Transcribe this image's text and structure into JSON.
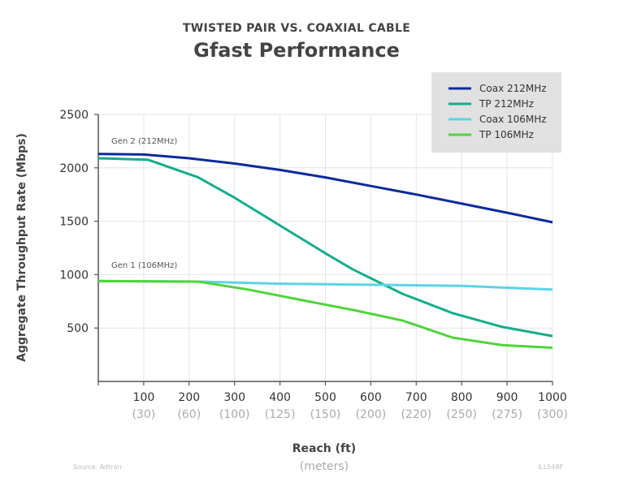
{
  "chart_data": {
    "type": "line",
    "supertitle": "TWISTED PAIR VS. COAXIAL CABLE",
    "title": "Gfast Performance",
    "xlabel": "Reach (ft)",
    "xlabel_secondary": "(meters)",
    "ylabel": "Aggregate Throughput Rate (Mbps)",
    "xlim": [
      0,
      1000
    ],
    "ylim": [
      0,
      2500
    ],
    "xticks": [
      100,
      200,
      300,
      400,
      500,
      600,
      700,
      800,
      900,
      1000
    ],
    "xtick_labels": [
      "100",
      "200",
      "300",
      "400",
      "500",
      "600",
      "700",
      "800",
      "900",
      "1000"
    ],
    "xtick_labels_meters": [
      "(30)",
      "(60)",
      "(100)",
      "(125)",
      "(150)",
      "(200)",
      "(220)",
      "(250)",
      "(275)",
      "(300)"
    ],
    "yticks": [
      500,
      1000,
      1500,
      2000,
      2500
    ],
    "ytick_labels": [
      "500",
      "1000",
      "1500",
      "2000",
      "2500"
    ],
    "grid": true,
    "legend_position": "top-right",
    "annotations": [
      {
        "text": "Gen 2 (212MHz)",
        "x": 30,
        "y": 2280
      },
      {
        "text": "Gen 1 (106MHz)",
        "x": 30,
        "y": 1070
      }
    ],
    "series": [
      {
        "name": "Coax 212MHz",
        "color": "#0b2a9b",
        "x": [
          0,
          100,
          200,
          300,
          400,
          500,
          600,
          700,
          800,
          900,
          1000
        ],
        "y": [
          2130,
          2125,
          2090,
          2040,
          1980,
          1910,
          1830,
          1750,
          1665,
          1580,
          1490
        ]
      },
      {
        "name": "TP 212MHz",
        "color": "#13ad8b",
        "x": [
          0,
          110,
          220,
          300,
          400,
          500,
          560,
          670,
          780,
          890,
          1000
        ],
        "y": [
          2090,
          2075,
          1910,
          1720,
          1460,
          1200,
          1050,
          820,
          640,
          510,
          425
        ]
      },
      {
        "name": "Coax 106MHz",
        "color": "#5ad4e6",
        "x": [
          0,
          220,
          400,
          600,
          800,
          1000
        ],
        "y": [
          940,
          935,
          915,
          905,
          895,
          860
        ]
      },
      {
        "name": "TP 106MHz",
        "color": "#4fd43a",
        "x": [
          0,
          220,
          330,
          450,
          560,
          670,
          780,
          890,
          1000
        ],
        "y": [
          940,
          935,
          860,
          760,
          670,
          570,
          410,
          340,
          315
        ]
      }
    ]
  },
  "footer": {
    "source": "Source: Adtran",
    "code": "ILL548F"
  }
}
